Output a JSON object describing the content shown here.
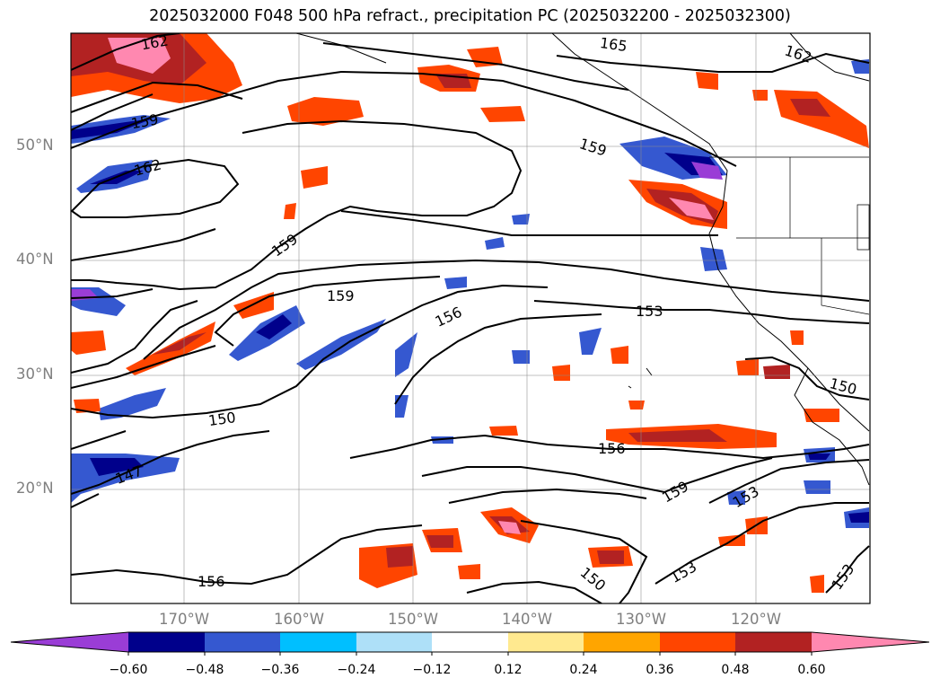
{
  "title": "2025032000 F048 500 hPa refract., precipitation PC (2025032200 - 2025032300)",
  "lat_labels": [
    "50°N",
    "40°N",
    "30°N",
    "20°N"
  ],
  "lon_labels": [
    "170°W",
    "160°W",
    "150°W",
    "140°W",
    "130°W",
    "120°W"
  ],
  "contour_labels": [
    "162",
    "165",
    "162",
    "159",
    "162",
    "159",
    "159",
    "159",
    "156",
    "153",
    "150",
    "150",
    "147",
    "156",
    "159",
    "153",
    "153",
    "156",
    "150",
    "153"
  ],
  "colorbar": {
    "tick_labels": [
      "−0.60",
      "−0.48",
      "−0.36",
      "−0.24",
      "−0.12",
      "0.12",
      "0.24",
      "0.36",
      "0.48",
      "0.60"
    ],
    "colors": [
      "#9a3dd6",
      "#00008b",
      "#3558d0",
      "#00bfff",
      "#aee0f8",
      "#ffffff",
      "#ffe98f",
      "#ffa500",
      "#ff4500",
      "#b22222",
      "#ff88b0"
    ]
  }
}
